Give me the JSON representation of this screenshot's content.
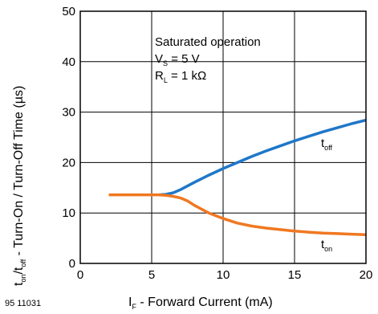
{
  "figure_id": "95 11031",
  "chart_data": {
    "type": "line",
    "xlabel": {
      "main": "I",
      "sub": "F",
      "rest": " - Forward Current (mA)"
    },
    "ylabel": {
      "p1": "t",
      "s1": "on",
      "p2": "/t",
      "s2": "off",
      "rest": " - Turn-On / Turn-Off Time (µs)"
    },
    "xlim": [
      0,
      20
    ],
    "ylim": [
      0,
      50
    ],
    "x_ticks": [
      0,
      5,
      10,
      15,
      20
    ],
    "y_ticks": [
      0,
      10,
      20,
      30,
      40,
      50
    ],
    "grid": true,
    "annotation": {
      "line1": "Saturated operation",
      "line2": {
        "main": "V",
        "sub": "S",
        "rest": " = 5 V"
      },
      "line3": {
        "main": "R",
        "sub": "L",
        "rest": " = 1 kΩ"
      }
    },
    "series": [
      {
        "name": {
          "main": "t",
          "sub": "off"
        },
        "color": "#1f77c8",
        "x": [
          5.5,
          6,
          6.5,
          7,
          8,
          9,
          10,
          11,
          12,
          13,
          14,
          15,
          16,
          17,
          18,
          19,
          20
        ],
        "y": [
          13.6,
          13.7,
          14.0,
          14.6,
          16.1,
          17.5,
          18.8,
          20.0,
          21.2,
          22.3,
          23.3,
          24.3,
          25.2,
          26.1,
          26.9,
          27.7,
          28.4
        ]
      },
      {
        "name": {
          "main": "t",
          "sub": "on"
        },
        "color": "#f07820",
        "x": [
          2,
          3,
          4,
          5,
          5.5,
          6,
          6.5,
          7,
          7.5,
          8,
          9,
          10,
          11,
          12,
          13,
          14,
          15,
          16,
          17,
          18,
          19,
          20
        ],
        "y": [
          13.6,
          13.6,
          13.6,
          13.6,
          13.6,
          13.5,
          13.3,
          13.0,
          12.4,
          11.5,
          10.0,
          8.9,
          8.0,
          7.4,
          7.0,
          6.7,
          6.4,
          6.2,
          6.0,
          5.9,
          5.8,
          5.7
        ]
      }
    ]
  }
}
